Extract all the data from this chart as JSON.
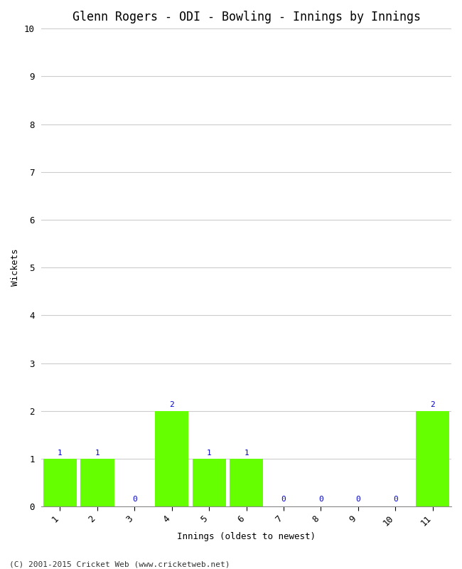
{
  "title": "Glenn Rogers - ODI - Bowling - Innings by Innings",
  "xlabel": "Innings (oldest to newest)",
  "ylabel": "Wickets",
  "categories": [
    "1",
    "2",
    "3",
    "4",
    "5",
    "6",
    "7",
    "8",
    "9",
    "10",
    "11"
  ],
  "values": [
    1,
    1,
    0,
    2,
    1,
    1,
    0,
    0,
    0,
    0,
    2
  ],
  "bar_color": "#66ff00",
  "label_color": "#0000cc",
  "background_color": "#ffffff",
  "grid_color": "#cccccc",
  "ylim": [
    0,
    10
  ],
  "yticks": [
    0,
    1,
    2,
    3,
    4,
    5,
    6,
    7,
    8,
    9,
    10
  ],
  "title_fontsize": 12,
  "axis_label_fontsize": 9,
  "tick_fontsize": 9,
  "bar_label_fontsize": 8,
  "footer_text": "(C) 2001-2015 Cricket Web (www.cricketweb.net)",
  "footer_fontsize": 8
}
